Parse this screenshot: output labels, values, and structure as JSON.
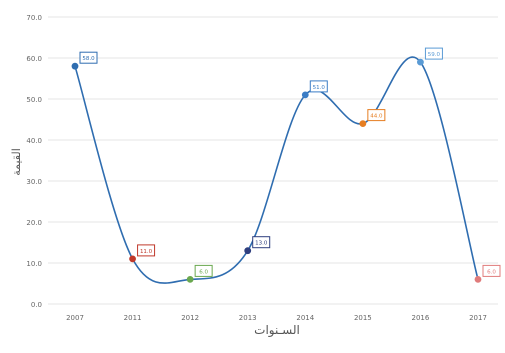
{
  "chart_data": {
    "type": "line",
    "title": "",
    "xlabel": "السـنوات",
    "ylabel": "القيمة",
    "categories": [
      "2007",
      "2011",
      "2012",
      "2013",
      "2014",
      "2015",
      "2016",
      "2017"
    ],
    "series": [
      {
        "values": [
          58.0,
          11.0,
          6.0,
          13.0,
          51.0,
          44.0,
          59.0,
          6.0
        ],
        "data_labels": [
          "58.0",
          "11.0",
          "6.0",
          "13.0",
          "51.0",
          "44.0",
          "59.0",
          "6.0"
        ],
        "point_colors": [
          "#2f6db0",
          "#c0392b",
          "#6aa84f",
          "#2f3f7f",
          "#3a7cc5",
          "#e67e22",
          "#5a9bd5",
          "#e07b7b"
        ],
        "line_color": "#2f6db0"
      }
    ],
    "y_ticks": [
      "0.0",
      "10.0",
      "20.0",
      "30.0",
      "40.0",
      "50.0",
      "60.0",
      "70.0"
    ],
    "ylim": [
      0,
      70
    ],
    "grid": true,
    "legend": "none",
    "smooth": true
  }
}
